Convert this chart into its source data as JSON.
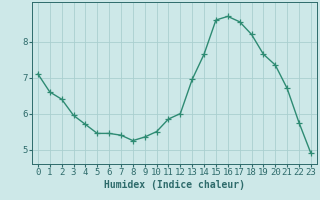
{
  "x": [
    0,
    1,
    2,
    3,
    4,
    5,
    6,
    7,
    8,
    9,
    10,
    11,
    12,
    13,
    14,
    15,
    16,
    17,
    18,
    19,
    20,
    21,
    22,
    23
  ],
  "y": [
    7.1,
    6.6,
    6.4,
    5.95,
    5.7,
    5.45,
    5.45,
    5.4,
    5.25,
    5.35,
    5.5,
    5.85,
    6.0,
    6.95,
    7.65,
    8.6,
    8.7,
    8.55,
    8.2,
    7.65,
    7.35,
    6.7,
    5.75,
    4.9
  ],
  "line_color": "#2e8b73",
  "marker": "+",
  "marker_size": 4,
  "bg_color": "#cde8e8",
  "grid_color": "#aacfcf",
  "axis_color": "#2e6b6b",
  "xlabel": "Humidex (Indice chaleur)",
  "ylabel": "",
  "xlim": [
    -0.5,
    23.5
  ],
  "ylim": [
    4.6,
    9.1
  ],
  "yticks": [
    5,
    6,
    7,
    8
  ],
  "xtick_labels": [
    "0",
    "1",
    "2",
    "3",
    "4",
    "5",
    "6",
    "7",
    "8",
    "9",
    "10",
    "11",
    "12",
    "13",
    "14",
    "15",
    "16",
    "17",
    "18",
    "19",
    "20",
    "21",
    "22",
    "23"
  ],
  "xlabel_fontsize": 7,
  "tick_fontsize": 6.5,
  "line_width": 1.0
}
